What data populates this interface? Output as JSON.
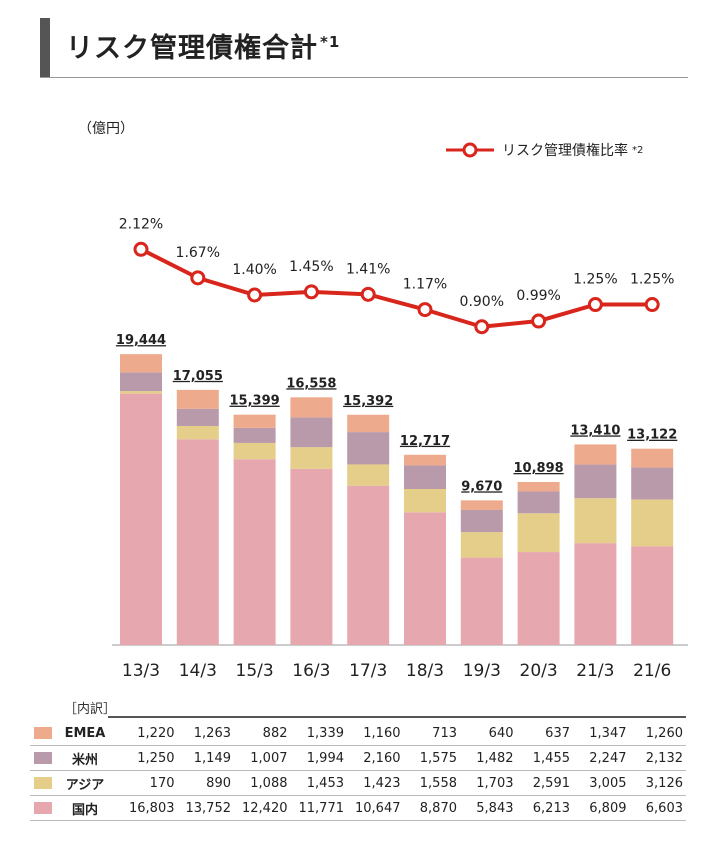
{
  "header": {
    "title": "リスク管理債権合計",
    "title_note": "*1",
    "unit": "（億円）",
    "legend_label": "リスク管理債権比率",
    "legend_note": "*2"
  },
  "colors": {
    "emea": "#eeaa8c",
    "americas": "#b89aaa",
    "asia": "#e5cd8a",
    "domestic": "#e6a8ae",
    "line": "#d9261c",
    "title_bar": "#555555"
  },
  "chart_data": {
    "type": "bar",
    "stacked": true,
    "categories": [
      "13/3",
      "14/3",
      "15/3",
      "16/3",
      "17/3",
      "18/3",
      "19/3",
      "20/3",
      "21/3",
      "21/6"
    ],
    "totals": [
      "19,444",
      "17,055",
      "15,399",
      "16,558",
      "15,392",
      "12,717",
      "9,670",
      "10,898",
      "13,410",
      "13,122"
    ],
    "series": [
      {
        "name": "国内",
        "key": "domestic",
        "values": [
          16803,
          13752,
          12420,
          11771,
          10647,
          8870,
          5843,
          6213,
          6809,
          6603
        ]
      },
      {
        "name": "アジア",
        "key": "asia",
        "values": [
          170,
          890,
          1088,
          1453,
          1423,
          1558,
          1703,
          2591,
          3005,
          3126
        ]
      },
      {
        "name": "米州",
        "key": "americas",
        "values": [
          1250,
          1149,
          1007,
          1994,
          2160,
          1575,
          1482,
          1455,
          2247,
          2132
        ]
      },
      {
        "name": "EMEA",
        "key": "emea",
        "values": [
          1220,
          1263,
          882,
          1339,
          1160,
          713,
          640,
          637,
          1347,
          1260
        ]
      }
    ],
    "ratio": {
      "name": "リスク管理債権比率",
      "values": [
        2.12,
        1.67,
        1.4,
        1.45,
        1.41,
        1.17,
        0.9,
        0.99,
        1.25,
        1.25
      ],
      "labels": [
        "2.12%",
        "1.67%",
        "1.40%",
        "1.45%",
        "1.41%",
        "1.17%",
        "0.90%",
        "0.99%",
        "1.25%",
        "1.25%"
      ]
    },
    "ylim": [
      0,
      20000
    ]
  },
  "breakdown": {
    "label": "［内訳］",
    "rows": [
      {
        "label": "EMEA",
        "key": "emea",
        "cells": [
          "1,220",
          "1,263",
          "882",
          "1,339",
          "1,160",
          "713",
          "640",
          "637",
          "1,347",
          "1,260"
        ]
      },
      {
        "label": "米州",
        "key": "americas",
        "cells": [
          "1,250",
          "1,149",
          "1,007",
          "1,994",
          "2,160",
          "1,575",
          "1,482",
          "1,455",
          "2,247",
          "2,132"
        ]
      },
      {
        "label": "アジア",
        "key": "asia",
        "cells": [
          "170",
          "890",
          "1,088",
          "1,453",
          "1,423",
          "1,558",
          "1,703",
          "2,591",
          "3,005",
          "3,126"
        ]
      },
      {
        "label": "国内",
        "key": "domestic",
        "cells": [
          "16,803",
          "13,752",
          "12,420",
          "11,771",
          "10,647",
          "8,870",
          "5,843",
          "6,213",
          "6,809",
          "6,603"
        ]
      }
    ]
  }
}
